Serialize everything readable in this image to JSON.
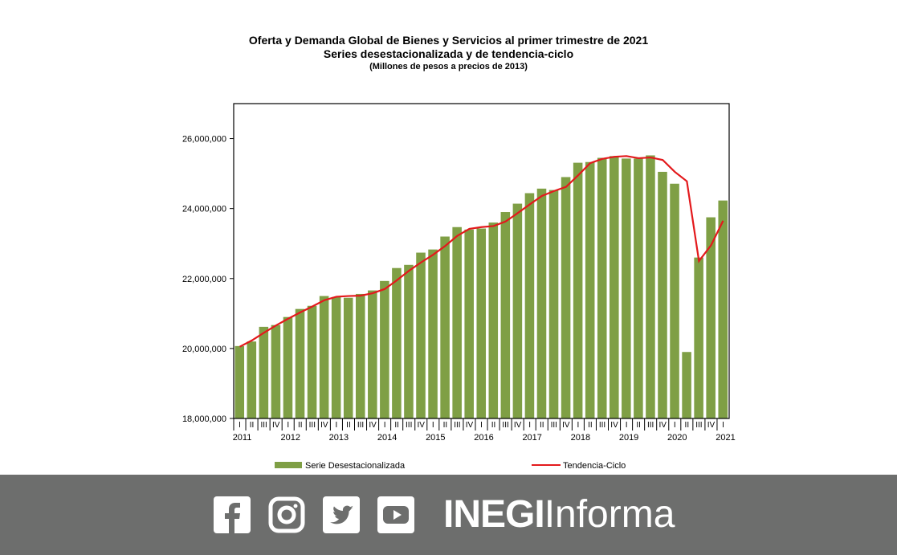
{
  "chart_data": {
    "type": "bar",
    "title": "Oferta y Demanda Global de Bienes y Servicios al primer trimestre de 2021",
    "subtitle": "Series desestacionalizada y de tendencia-ciclo",
    "units": "(Millones  de pesos a precios de 2013)",
    "ylim": [
      18000000,
      27000000
    ],
    "yticks": [
      "18,000,000",
      "20,000,000",
      "22,000,000",
      "24,000,000",
      "26,000,000"
    ],
    "ytick_values": [
      18000000,
      20000000,
      22000000,
      24000000,
      26000000
    ],
    "quarters": [
      "I",
      "II",
      "III",
      "IV",
      "I",
      "II",
      "III",
      "IV",
      "I",
      "II",
      "III",
      "IV",
      "I",
      "II",
      "III",
      "IV",
      "I",
      "II",
      "III",
      "IV",
      "I",
      "II",
      "III",
      "IV",
      "I",
      "II",
      "III",
      "IV",
      "I",
      "II",
      "III",
      "IV",
      "I",
      "II",
      "III",
      "IV",
      "I",
      "II",
      "III",
      "IV",
      "I"
    ],
    "years": [
      "2011",
      "2012",
      "2013",
      "2014",
      "2015",
      "2016",
      "2017",
      "2018",
      "2019",
      "2020",
      "2021"
    ],
    "legend_position": "bottom",
    "series": [
      {
        "name": "Serie Desestacionalizada",
        "type": "bar",
        "color": "#7f9f45",
        "values": [
          20070000,
          20200000,
          20620000,
          20670000,
          20900000,
          21130000,
          21220000,
          21500000,
          21470000,
          21450000,
          21560000,
          21660000,
          21930000,
          22300000,
          22390000,
          22740000,
          22830000,
          23200000,
          23470000,
          23400000,
          23430000,
          23600000,
          23900000,
          24140000,
          24440000,
          24570000,
          24530000,
          24900000,
          25310000,
          25330000,
          25450000,
          25500000,
          25430000,
          25430000,
          25520000,
          25050000,
          24710000,
          19900000,
          22600000,
          23750000,
          24230000
        ]
      },
      {
        "name": "Tendencia-Ciclo",
        "type": "line",
        "color": "#e3191c",
        "values": [
          20050000,
          20230000,
          20450000,
          20660000,
          20850000,
          21030000,
          21200000,
          21380000,
          21480000,
          21500000,
          21510000,
          21580000,
          21700000,
          21950000,
          22220000,
          22460000,
          22680000,
          22930000,
          23220000,
          23420000,
          23470000,
          23500000,
          23630000,
          23870000,
          24120000,
          24360000,
          24500000,
          24620000,
          24950000,
          25300000,
          25420000,
          25480000,
          25500000,
          25440000,
          25460000,
          25390000,
          25050000,
          24780000,
          22500000,
          22950000,
          23650000
        ]
      }
    ]
  },
  "footer": {
    "brand_bold": "INEGI",
    "brand_light": "Informa",
    "icons": [
      "facebook-icon",
      "instagram-icon",
      "twitter-icon",
      "youtube-icon"
    ],
    "background": "#6d6e6d"
  }
}
